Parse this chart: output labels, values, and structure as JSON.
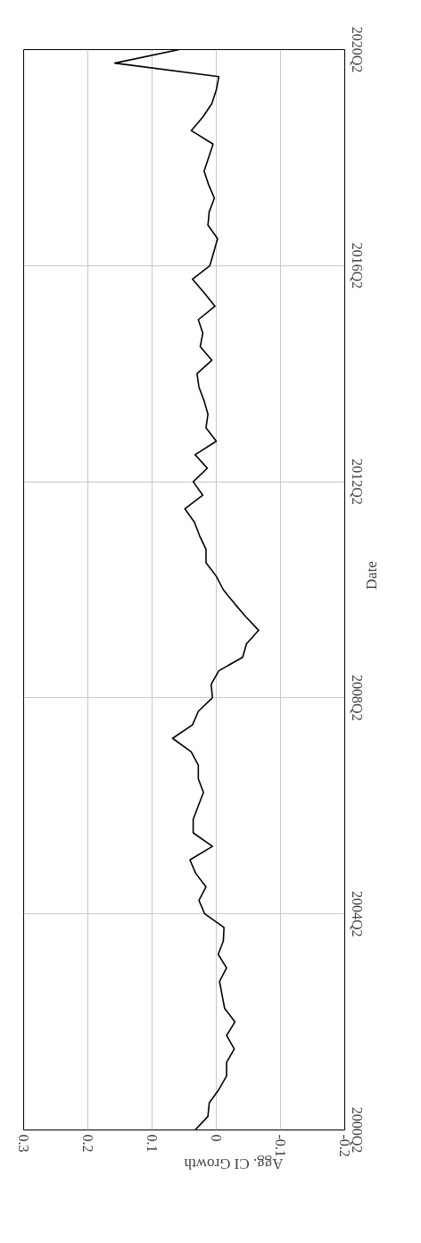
{
  "chart_data": {
    "type": "line",
    "orientation": "horizontal",
    "xlabel": "Agg. CI Growth",
    "ylabel": "Date",
    "categories": [
      "2020Q2",
      null,
      null,
      null,
      null,
      null,
      null,
      null,
      null,
      null,
      null,
      null,
      null,
      null,
      null,
      null,
      "2016Q2",
      null,
      null,
      null,
      null,
      null,
      null,
      null,
      null,
      null,
      null,
      null,
      null,
      null,
      null,
      null,
      "2012Q2",
      null,
      null,
      null,
      null,
      null,
      null,
      null,
      null,
      null,
      null,
      null,
      null,
      null,
      null,
      null,
      "2008Q2",
      null,
      null,
      null,
      null,
      null,
      null,
      null,
      null,
      null,
      null,
      null,
      null,
      null,
      null,
      null,
      "2004Q2",
      null,
      null,
      null,
      null,
      null,
      null,
      null,
      null,
      null,
      null,
      null,
      null,
      null,
      null,
      null,
      "2000Q2"
    ],
    "series": [
      {
        "color": "#000000",
        "values": [
          0.058,
          0.158,
          -0.004,
          0.0,
          0.007,
          0.021,
          0.039,
          0.005,
          0.012,
          0.019,
          0.012,
          0.003,
          0.011,
          0.013,
          -0.002,
          0.004,
          0.01,
          0.037,
          0.019,
          0.002,
          0.028,
          0.021,
          0.025,
          0.007,
          0.03,
          0.027,
          0.019,
          0.013,
          0.016,
          0.0,
          0.033,
          0.014,
          0.036,
          0.021,
          0.049,
          0.034,
          0.026,
          0.016,
          0.016,
          0.0,
          -0.011,
          -0.028,
          -0.046,
          -0.066,
          -0.047,
          -0.041,
          -0.004,
          0.008,
          0.006,
          0.028,
          0.037,
          0.068,
          0.039,
          0.028,
          0.028,
          0.02,
          0.028,
          0.036,
          0.036,
          0.006,
          0.041,
          0.032,
          0.016,
          0.027,
          0.018,
          -0.012,
          -0.011,
          -0.003,
          -0.016,
          -0.005,
          -0.009,
          -0.013,
          -0.029,
          -0.016,
          -0.028,
          -0.016,
          -0.016,
          -0.004,
          0.011,
          0.013,
          0.033
        ]
      }
    ],
    "xlim": [
      0.3,
      -0.2
    ],
    "xticks": [
      0.3,
      0.2,
      0.1,
      0,
      -0.1,
      -0.2
    ],
    "grid": true,
    "line_style": "solid"
  }
}
